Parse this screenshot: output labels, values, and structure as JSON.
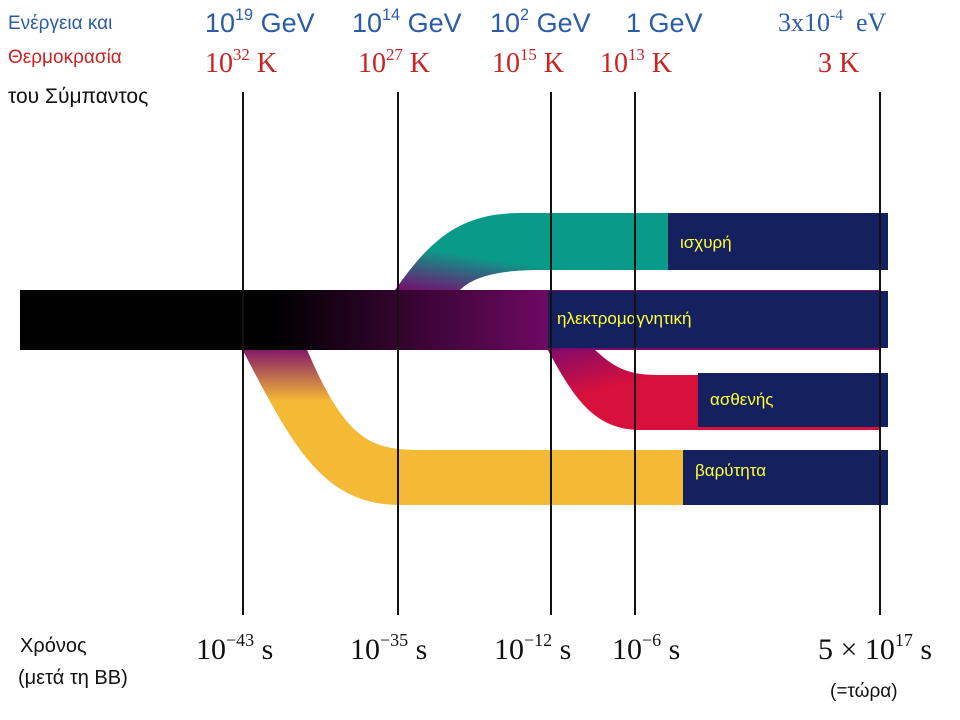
{
  "header": {
    "energy_label": "Ενέργεια και",
    "temperature_label": "Θερμοκρασία",
    "universe_label": "του Σύμπαντος"
  },
  "epochs": [
    {
      "energy_base": "10",
      "energy_exp": "19",
      "energy_unit": "GeV",
      "temp_base": "10",
      "temp_exp": "32",
      "temp_unit": "K",
      "time_base": "10",
      "time_exp": "−43",
      "time_unit": "s"
    },
    {
      "energy_base": "10",
      "energy_exp": "14",
      "energy_unit": "GeV",
      "temp_base": "10",
      "temp_exp": "27",
      "temp_unit": "K",
      "time_base": "10",
      "time_exp": "−35",
      "time_unit": "s"
    },
    {
      "energy_base": "10",
      "energy_exp": "2",
      "energy_unit": "GeV",
      "temp_base": "10",
      "temp_exp": "15",
      "temp_unit": "K",
      "time_base": "10",
      "time_exp": "−12",
      "time_unit": "s"
    },
    {
      "energy_base": "1",
      "energy_exp": "",
      "energy_unit": "GeV",
      "temp_base": "10",
      "temp_exp": "13",
      "temp_unit": "K",
      "time_base": "10",
      "time_exp": "−6",
      "time_unit": "s"
    },
    {
      "energy_base": "3x10",
      "energy_exp": "-4",
      "energy_unit": "eV",
      "temp_base": "3 K",
      "temp_exp": "",
      "temp_unit": "",
      "time_base": "5 × 10",
      "time_exp": "17",
      "time_unit": "s"
    }
  ],
  "time_axis": {
    "label_line1": "Χρόνος",
    "label_line2": "(μετά τη BB)",
    "now_note": "(=τώρα)"
  },
  "forces": {
    "strong": "ισχυρή",
    "electromagnetic": "ηλεκτρομαγνητική",
    "weak": "ασθενής",
    "gravity": "βαρύτητα"
  },
  "colors": {
    "energy": "#2a5caa",
    "temperature": "#cc2222",
    "strong": "#0a9a8a",
    "electromagnetic": "#7a0a6e",
    "weak": "#d8103c",
    "gravity": "#f4b935",
    "label_box": "#15205e",
    "label_text": "#ffff33",
    "unified_start": "#000000"
  }
}
